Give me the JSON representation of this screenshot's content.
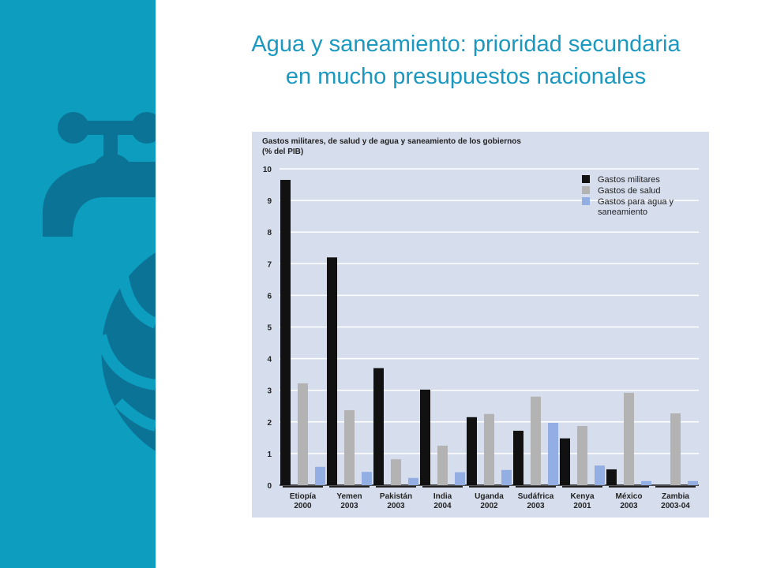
{
  "slide": {
    "title_line1": "Agua y saneamiento: prioridad secundaria",
    "title_line2": "en mucho presupuestos nacionales"
  },
  "decor": {
    "icon": "water-tap-icon"
  },
  "colors": {
    "sidebar": "#0d9ebf",
    "sidebar_icon": "#0b7396",
    "title": "#1a98bf",
    "chart_bg": "#d6deee",
    "military": "#111111",
    "health": "#b3b3b3",
    "water": "#93aee3"
  },
  "chart_data": {
    "type": "bar",
    "title_line1": "Gastos militares, de salud y de agua y saneamiento de los gobiernos",
    "title_line2": "(% del PIB)",
    "ylim": [
      0,
      10
    ],
    "yticks": [
      0,
      1,
      2,
      3,
      4,
      5,
      6,
      7,
      8,
      9,
      10
    ],
    "grid": true,
    "legend_position": "top-right",
    "categories": [
      {
        "name": "Etiopía",
        "year": "2000"
      },
      {
        "name": "Yemen",
        "year": "2003"
      },
      {
        "name": "Pakistán",
        "year": "2003"
      },
      {
        "name": "India",
        "year": "2004"
      },
      {
        "name": "Uganda",
        "year": "2002"
      },
      {
        "name": "Sudáfrica",
        "year": "2003"
      },
      {
        "name": "Kenya",
        "year": "2001"
      },
      {
        "name": "México",
        "year": "2003"
      },
      {
        "name": "Zambia",
        "year": "2003-04"
      }
    ],
    "series": [
      {
        "name": "Gastos militares",
        "color": "#111111",
        "values": [
          9.65,
          7.2,
          3.7,
          3.02,
          2.15,
          1.72,
          1.48,
          0.5,
          null
        ]
      },
      {
        "name": "Gastos de salud",
        "color": "#b3b3b3",
        "values": [
          3.22,
          2.37,
          0.82,
          1.25,
          2.25,
          2.8,
          1.87,
          2.92,
          2.27
        ]
      },
      {
        "name": "Gastos para agua y saneamiento",
        "color": "#93aee3",
        "values": [
          0.58,
          0.42,
          0.23,
          0.41,
          0.48,
          1.97,
          0.62,
          0.13,
          0.13
        ]
      }
    ]
  }
}
